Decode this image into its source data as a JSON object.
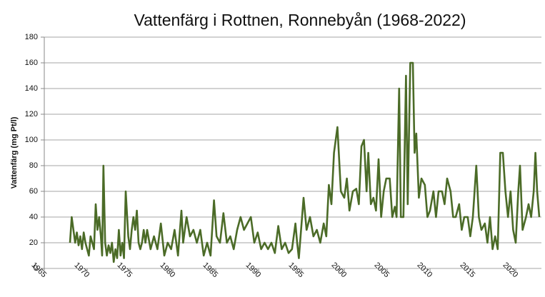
{
  "chart_data": {
    "type": "line",
    "title": "Vattenfärg i Rottnen, Ronnebyån (1968-2022)",
    "y_label": "Vattenfärg (mg Pt/l)",
    "color": "#4b6b27",
    "grid": true,
    "xlim": [
      1965,
      2023
    ],
    "xticks": [
      1965,
      1970,
      1975,
      1980,
      1985,
      1990,
      1995,
      2000,
      2005,
      2010,
      2015,
      2020
    ],
    "ylim": [
      0,
      180
    ],
    "yticks": [
      0,
      20,
      40,
      60,
      80,
      100,
      120,
      140,
      160,
      180
    ],
    "x": [
      1968.0,
      1968.2,
      1968.4,
      1968.6,
      1968.8,
      1969.0,
      1969.2,
      1969.4,
      1969.6,
      1969.8,
      1970.0,
      1970.2,
      1970.4,
      1970.6,
      1970.8,
      1971.0,
      1971.2,
      1971.4,
      1971.6,
      1971.75,
      1971.9,
      1972.1,
      1972.3,
      1972.5,
      1972.7,
      1972.9,
      1973.1,
      1973.3,
      1973.5,
      1973.7,
      1973.9,
      1974.1,
      1974.3,
      1974.5,
      1974.8,
      1975.0,
      1975.2,
      1975.4,
      1975.6,
      1975.8,
      1976.0,
      1976.2,
      1976.4,
      1976.6,
      1976.8,
      1977.0,
      1977.4,
      1977.8,
      1978.2,
      1978.6,
      1979.0,
      1979.4,
      1979.8,
      1980.2,
      1980.6,
      1981.0,
      1981.2,
      1981.6,
      1982.0,
      1982.4,
      1982.8,
      1983.2,
      1983.6,
      1984.0,
      1984.4,
      1984.8,
      1985.1,
      1985.5,
      1985.9,
      1986.3,
      1986.7,
      1987.1,
      1987.5,
      1987.9,
      1988.3,
      1988.7,
      1989.1,
      1989.5,
      1989.9,
      1990.3,
      1990.7,
      1991.1,
      1991.5,
      1991.9,
      1992.3,
      1992.7,
      1993.1,
      1993.5,
      1993.9,
      1994.3,
      1994.5,
      1994.7,
      1995.25,
      1995.6,
      1996.0,
      1996.4,
      1996.8,
      1997.2,
      1997.6,
      1997.9,
      1998.2,
      1998.5,
      1998.8,
      1999.2,
      1999.6,
      2000.0,
      2000.3,
      2000.6,
      2001.0,
      2001.4,
      2001.7,
      2002.0,
      2002.3,
      2002.6,
      2002.8,
      2003.1,
      2003.4,
      2003.7,
      2004.0,
      2004.3,
      2004.6,
      2004.9,
      2005.3,
      2005.6,
      2005.9,
      2006.1,
      2006.4,
      2006.6,
      2006.9,
      2007.2,
      2007.4,
      2007.7,
      2008.0,
      2008.2,
      2008.4,
      2008.7,
      2009.0,
      2009.4,
      2009.7,
      2010.0,
      2010.4,
      2010.7,
      2011.0,
      2011.4,
      2011.7,
      2012.0,
      2012.4,
      2012.7,
      2013.0,
      2013.4,
      2013.7,
      2014.0,
      2014.4,
      2014.7,
      2015.0,
      2015.4,
      2015.7,
      2016.0,
      2016.4,
      2016.7,
      2017.0,
      2017.3,
      2017.6,
      2017.9,
      2018.2,
      2018.5,
      2018.8,
      2019.1,
      2019.4,
      2019.7,
      2020.0,
      2020.3,
      2020.5,
      2020.8,
      2021.2,
      2021.5,
      2021.8,
      2022.1,
      2022.3,
      2022.5,
      2022.75
    ],
    "values": [
      20,
      40,
      30,
      20,
      28,
      18,
      25,
      15,
      28,
      20,
      15,
      10,
      25,
      20,
      15,
      50,
      30,
      40,
      25,
      10,
      80,
      20,
      10,
      18,
      12,
      20,
      5,
      15,
      8,
      30,
      10,
      20,
      8,
      60,
      25,
      15,
      30,
      40,
      30,
      45,
      20,
      15,
      20,
      30,
      20,
      30,
      15,
      25,
      15,
      35,
      10,
      20,
      15,
      30,
      10,
      45,
      20,
      40,
      25,
      30,
      20,
      30,
      10,
      20,
      10,
      53,
      25,
      20,
      43,
      20,
      25,
      15,
      30,
      40,
      30,
      35,
      40,
      20,
      28,
      15,
      20,
      15,
      20,
      12,
      33,
      15,
      20,
      12,
      15,
      35,
      20,
      8,
      55,
      30,
      40,
      25,
      30,
      20,
      35,
      25,
      65,
      50,
      90,
      110,
      60,
      55,
      70,
      45,
      60,
      62,
      50,
      95,
      100,
      60,
      90,
      50,
      55,
      45,
      85,
      40,
      60,
      70,
      70,
      40,
      48,
      40,
      140,
      40,
      40,
      150,
      50,
      160,
      160,
      90,
      105,
      55,
      70,
      65,
      40,
      45,
      60,
      40,
      60,
      60,
      50,
      70,
      60,
      40,
      40,
      50,
      30,
      40,
      40,
      25,
      40,
      80,
      40,
      30,
      35,
      20,
      40,
      15,
      25,
      15,
      90,
      90,
      60,
      40,
      60,
      30,
      20,
      60,
      80,
      30,
      40,
      50,
      40,
      60,
      90,
      60,
      40
    ]
  }
}
